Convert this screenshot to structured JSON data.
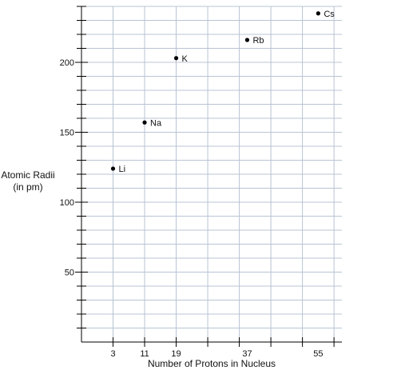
{
  "chart_data": {
    "type": "scatter",
    "title": "",
    "xlabel": "Number of Protons in Nucleus",
    "ylabel_line1": "Atomic Radii",
    "ylabel_line2": "(in pm)",
    "x_ticks": [
      3,
      11,
      19,
      37,
      55
    ],
    "y_ticks": [
      50,
      100,
      150,
      200
    ],
    "xlim": [
      -5,
      61
    ],
    "ylim": [
      0,
      240
    ],
    "grid": true,
    "points": [
      {
        "label": "Li",
        "x": 3,
        "y": 124
      },
      {
        "label": "Na",
        "x": 11,
        "y": 157
      },
      {
        "label": "K",
        "x": 19,
        "y": 203
      },
      {
        "label": "Rb",
        "x": 37,
        "y": 216
      },
      {
        "label": "Cs",
        "x": 55,
        "y": 235
      }
    ],
    "marker_color": "#000000",
    "grid_color": "#b8c4d4",
    "axis_color": "#000000"
  }
}
